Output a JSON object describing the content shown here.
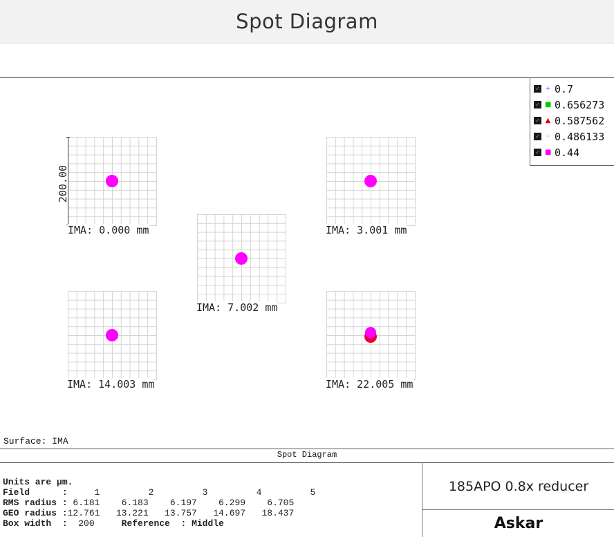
{
  "header": {
    "title": "Spot Diagram"
  },
  "scale": {
    "label": "200.00"
  },
  "colors": {
    "field_0_7": "#5b5bff",
    "field_0_656273": "#00cc00",
    "field_0_587562": "#e80000",
    "field_0_486133": "#d8d890",
    "field_0_44": "#ff00ff"
  },
  "legend": {
    "items": [
      {
        "label": "0.7",
        "mark": "+",
        "color": "#5b5bff"
      },
      {
        "label": "0.656273",
        "mark": "■",
        "color": "#00cc00"
      },
      {
        "label": "0.587562",
        "mark": "▲",
        "color": "#e80000"
      },
      {
        "label": "0.486133",
        "mark": "+",
        "color": "#d8d890"
      },
      {
        "label": "0.44",
        "mark": "■",
        "color": "#ff00ff"
      }
    ]
  },
  "spots": [
    {
      "label": "IMA: 0.000 mm"
    },
    {
      "label": "IMA: 3.001 mm"
    },
    {
      "label": "IMA: 7.002 mm"
    },
    {
      "label": "IMA: 14.003 mm"
    },
    {
      "label": "IMA: 22.005 mm"
    }
  ],
  "surface": "Surface: IMA",
  "footer": {
    "title": "Spot Diagram",
    "units": "Units are µm.",
    "field_label": "Field      :",
    "field_values": "     1         2         3         4         5",
    "rms_label": "RMS radius :",
    "rms_values": " 6.181    6.183    6.197    6.299    6.705",
    "geo_label": "GEO radius :",
    "geo_values": "12.761   13.221   13.757   14.697   18.437",
    "box_label": "Box width  :",
    "box_value": "  200",
    "reference_label": "     Reference  : Middle"
  },
  "product": {
    "name": "185APO 0.8x reducer",
    "brand": "Askar"
  }
}
